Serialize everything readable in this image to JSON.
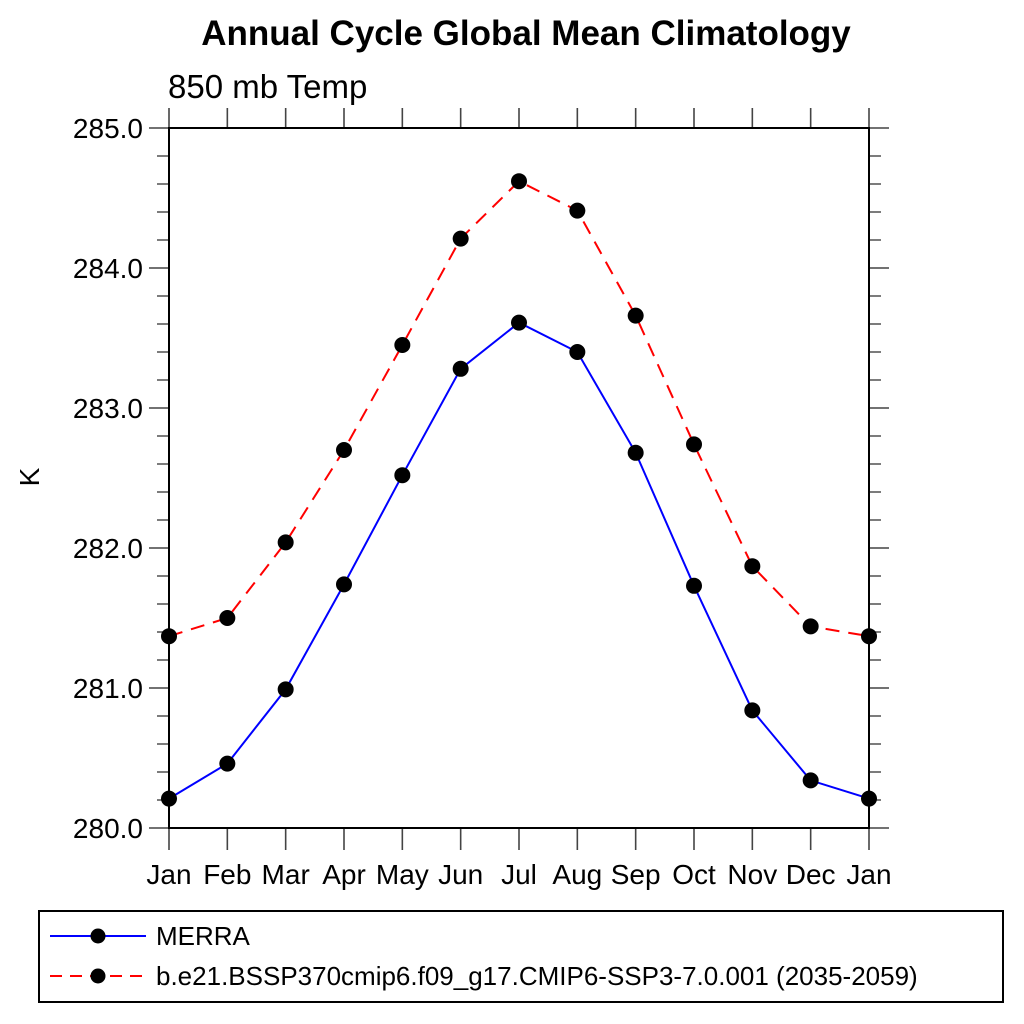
{
  "figure": {
    "background": "#ffffff"
  },
  "chart_data": {
    "type": "line",
    "title": "Annual Cycle Global Mean Climatology",
    "subtitle": "850 mb Temp",
    "xlabel": "",
    "ylabel": "K",
    "categories": [
      "Jan",
      "Feb",
      "Mar",
      "Apr",
      "May",
      "Jun",
      "Jul",
      "Aug",
      "Sep",
      "Oct",
      "Nov",
      "Dec",
      "Jan"
    ],
    "series": [
      {
        "name": "MERRA",
        "line_color": "#0000ff",
        "line_style": "solid",
        "marker": "filled-circle",
        "marker_color": "#000000",
        "values": [
          280.21,
          280.46,
          280.99,
          281.74,
          282.52,
          283.28,
          283.61,
          283.4,
          282.68,
          281.73,
          280.84,
          280.34,
          280.21
        ]
      },
      {
        "name": "b.e21.BSSP370cmip6.f09_g17.CMIP6-SSP3-7.0.001 (2035-2059)",
        "line_color": "#ff0000",
        "line_style": "dashed",
        "marker": "filled-circle",
        "marker_color": "#000000",
        "values": [
          281.37,
          281.5,
          282.04,
          282.7,
          283.45,
          284.21,
          284.62,
          284.41,
          283.66,
          282.74,
          281.87,
          281.44,
          281.37
        ]
      }
    ],
    "ylim": [
      280.0,
      285.0
    ],
    "yticks": [
      280.0,
      281.0,
      282.0,
      283.0,
      284.0,
      285.0
    ],
    "ytick_labels": [
      "280.0",
      "281.0",
      "282.0",
      "283.0",
      "284.0",
      "285.0"
    ],
    "yminor_interval": 0.2,
    "grid": false,
    "legend_position": "bottom-left",
    "axis_color": "#000000",
    "tick_color": "#444444"
  }
}
